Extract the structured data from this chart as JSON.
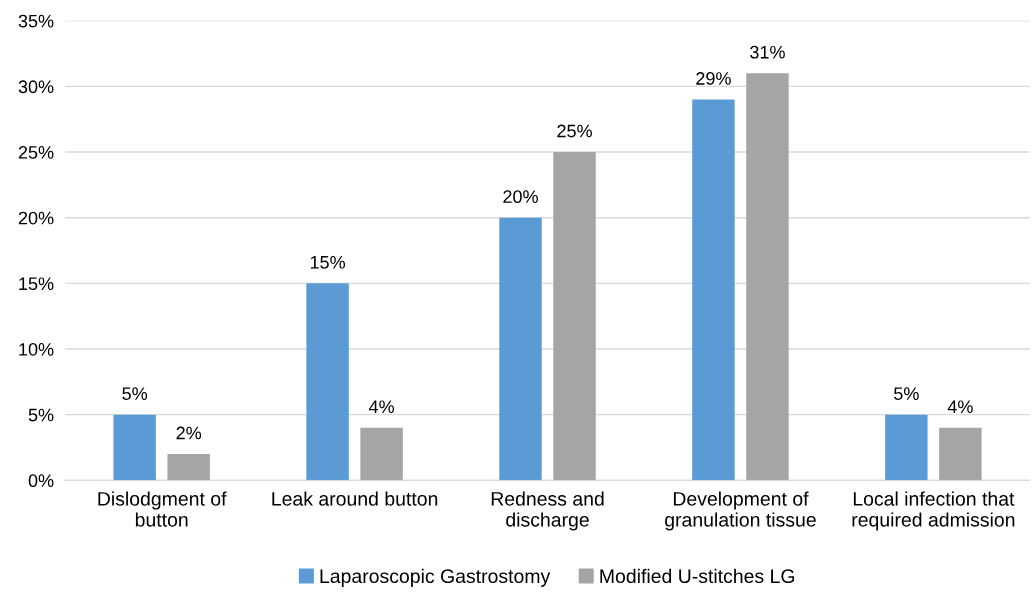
{
  "chart_data": {
    "type": "bar",
    "categories": [
      "Dislodgment of\nbutton",
      "Leak around button",
      "Redness and\ndischarge",
      "Development of\ngranulation tissue",
      "Local infection that\nrequired admission"
    ],
    "series": [
      {
        "name": "Laparoscopic Gastrostomy",
        "color": "#5b9bd5",
        "values": [
          5,
          15,
          20,
          29,
          5
        ],
        "value_labels": [
          "5%",
          "15%",
          "20%",
          "29%",
          "5%"
        ]
      },
      {
        "name": "Modified U-stitches LG",
        "color": "#a5a5a5",
        "values": [
          2,
          4,
          25,
          31,
          4
        ],
        "value_labels": [
          "2%",
          "4%",
          "25%",
          "31%",
          "4%"
        ]
      }
    ],
    "ylim": [
      0,
      35
    ],
    "yticks": [
      {
        "value": 0,
        "label": "0%"
      },
      {
        "value": 5,
        "label": "5%"
      },
      {
        "value": 10,
        "label": "10%"
      },
      {
        "value": 15,
        "label": "15%"
      },
      {
        "value": 20,
        "label": "20%"
      },
      {
        "value": 25,
        "label": "25%"
      },
      {
        "value": 30,
        "label": "30%"
      },
      {
        "value": 35,
        "label": "35%"
      }
    ],
    "grid": "y",
    "legend": "bottom"
  }
}
